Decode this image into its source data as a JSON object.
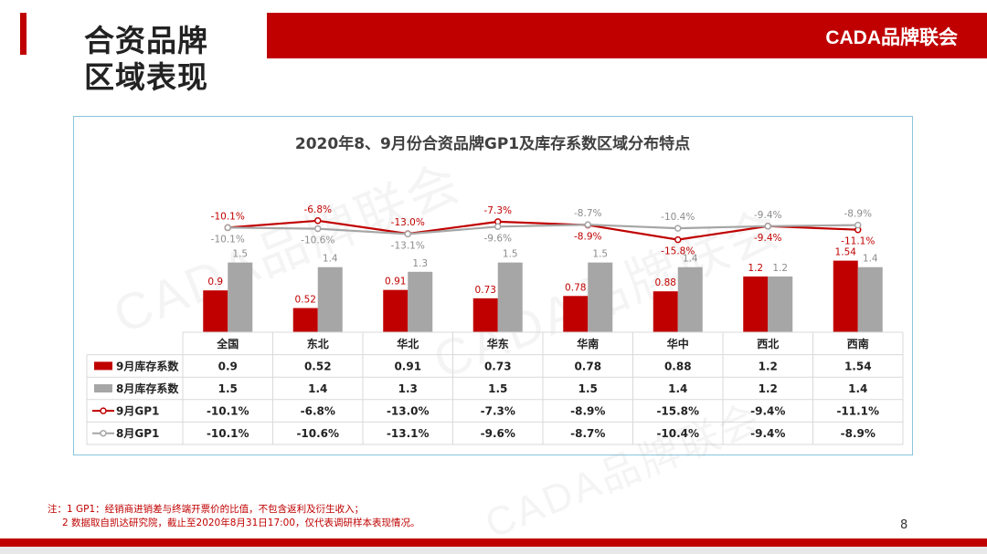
{
  "header": {
    "title_line1": "合资品牌",
    "title_line2": "区域表现",
    "brand": "CADA品牌联会"
  },
  "watermark": "CADA品牌联会",
  "chart_data": {
    "type": "bar+line",
    "title": "2020年8、9月份合资品牌GP1及库存系数区域分布特点",
    "categories": [
      "全国",
      "东北",
      "华北",
      "华东",
      "华南",
      "华中",
      "西北",
      "西南"
    ],
    "bar_series": [
      {
        "name": "9月库存系数",
        "values": [
          0.9,
          0.52,
          0.91,
          0.73,
          0.78,
          0.88,
          1.2,
          1.54
        ],
        "labels": [
          "0.9",
          "0.52",
          "0.91",
          "0.73",
          "0.78",
          "0.88",
          "1.2",
          "1.54"
        ],
        "color": "#c00000"
      },
      {
        "name": "8月库存系数",
        "values": [
          1.5,
          1.4,
          1.3,
          1.5,
          1.5,
          1.4,
          1.2,
          1.4
        ],
        "labels": [
          "1.5",
          "1.4",
          "1.3",
          "1.5",
          "1.5",
          "1.4",
          "1.2",
          "1.4"
        ],
        "color": "#a6a6a6"
      }
    ],
    "line_series": [
      {
        "name": "9月GP1",
        "values": [
          -10.1,
          -6.8,
          -13.0,
          -7.3,
          -8.9,
          -15.8,
          -9.4,
          -11.1
        ],
        "labels": [
          "-10.1%",
          "-6.8%",
          "-13.0%",
          "-7.3%",
          "-8.9%",
          "-15.8%",
          "-9.4%",
          "-11.1%"
        ],
        "color": "#c00000"
      },
      {
        "name": "8月GP1",
        "values": [
          -10.1,
          -10.6,
          -13.1,
          -9.6,
          -8.7,
          -10.4,
          -9.4,
          -8.9
        ],
        "labels": [
          "-10.1%",
          "-10.6%",
          "-13.1%",
          "-9.6%",
          "-8.7%",
          "-10.4%",
          "-9.4%",
          "-8.9%"
        ],
        "color": "#a6a6a6"
      }
    ],
    "bar_axis_range": [
      0,
      2.2
    ],
    "line_axis_range": [
      -25,
      0
    ],
    "legend": "data-table"
  },
  "notes": {
    "line1": "注：1  GP1：经销商进销差与终端开票价的比值，不包含返利及衍生收入；",
    "line2": "2 数据取自凯达研究院，截止至2020年8月31日17:00，仅代表调研样本表现情况。"
  },
  "page_number": "8"
}
